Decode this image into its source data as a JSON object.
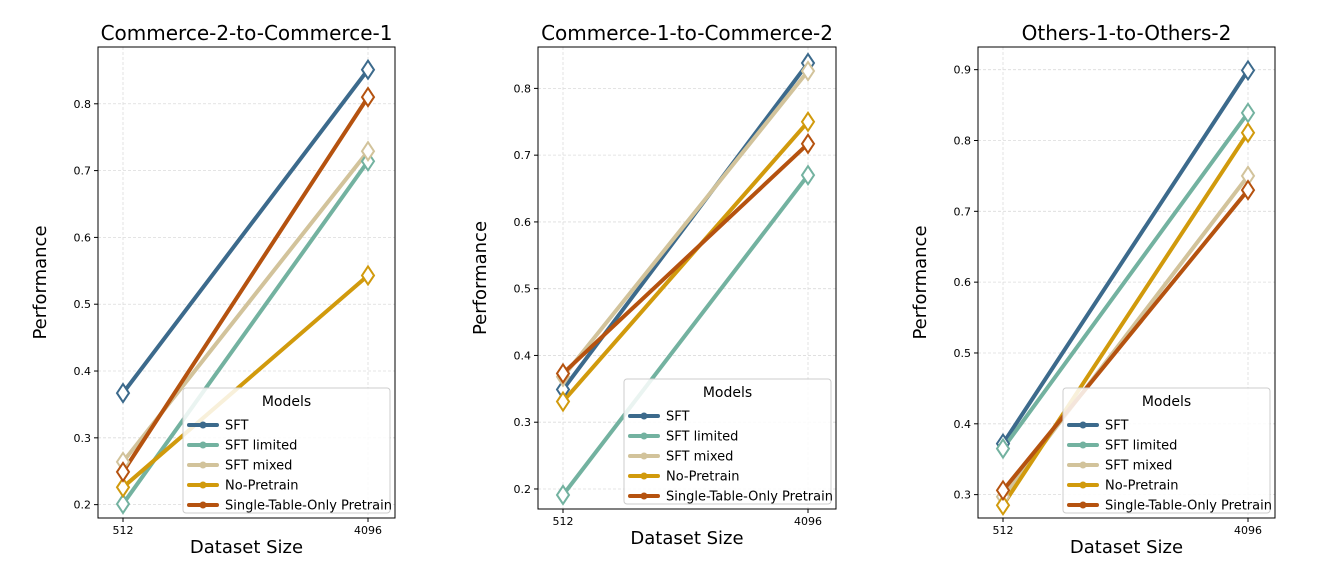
{
  "colors": {
    "SFT": "#3c6a8c",
    "SFT limited": "#73b2a0",
    "SFT mixed": "#d2c39b",
    "No-Pretrain": "#d19a0c",
    "Single-Table-Only Pretrain": "#b5520f"
  },
  "legend": {
    "title": "Models",
    "placement": "lower-right",
    "entries": [
      "SFT",
      "SFT limited",
      "SFT mixed",
      "No-Pretrain",
      "Single-Table-Only Pretrain"
    ]
  },
  "chart_data": [
    {
      "type": "line",
      "title": "Commerce-2-to-Commerce-1",
      "xlabel": "Dataset Size",
      "ylabel": "Performance",
      "categories": [
        "512",
        "4096"
      ],
      "ylim": [
        0.18,
        0.885
      ],
      "yticks": [
        0.2,
        0.3,
        0.4,
        0.5,
        0.6,
        0.7,
        0.8
      ],
      "grid": true,
      "marker": "diamond",
      "series": [
        {
          "name": "SFT",
          "values": [
            0.367,
            0.851
          ]
        },
        {
          "name": "SFT limited",
          "values": [
            0.201,
            0.714
          ]
        },
        {
          "name": "SFT mixed",
          "values": [
            0.264,
            0.729
          ]
        },
        {
          "name": "No-Pretrain",
          "values": [
            0.226,
            0.543
          ]
        },
        {
          "name": "Single-Table-Only Pretrain",
          "values": [
            0.249,
            0.81
          ]
        }
      ]
    },
    {
      "type": "line",
      "title": "Commerce-1-to-Commerce-2",
      "xlabel": "Dataset Size",
      "ylabel": "Performance",
      "categories": [
        "512",
        "4096"
      ],
      "ylim": [
        0.17,
        0.862
      ],
      "yticks": [
        0.2,
        0.3,
        0.4,
        0.5,
        0.6,
        0.7,
        0.8
      ],
      "grid": true,
      "marker": "diamond",
      "series": [
        {
          "name": "SFT",
          "values": [
            0.349,
            0.838
          ]
        },
        {
          "name": "SFT limited",
          "values": [
            0.191,
            0.67
          ]
        },
        {
          "name": "SFT mixed",
          "values": [
            0.368,
            0.826
          ]
        },
        {
          "name": "No-Pretrain",
          "values": [
            0.331,
            0.75
          ]
        },
        {
          "name": "Single-Table-Only Pretrain",
          "values": [
            0.373,
            0.717
          ]
        }
      ]
    },
    {
      "type": "line",
      "title": "Others-1-to-Others-2",
      "xlabel": "Dataset Size",
      "ylabel": "Performance",
      "categories": [
        "512",
        "4096"
      ],
      "ylim": [
        0.267,
        0.932
      ],
      "yticks": [
        0.3,
        0.4,
        0.5,
        0.6,
        0.7,
        0.8,
        0.9
      ],
      "grid": true,
      "marker": "diamond",
      "series": [
        {
          "name": "SFT",
          "values": [
            0.372,
            0.899
          ]
        },
        {
          "name": "SFT limited",
          "values": [
            0.365,
            0.839
          ]
        },
        {
          "name": "SFT mixed",
          "values": [
            0.297,
            0.75
          ]
        },
        {
          "name": "No-Pretrain",
          "values": [
            0.285,
            0.811
          ]
        },
        {
          "name": "Single-Table-Only Pretrain",
          "values": [
            0.306,
            0.73
          ]
        }
      ]
    }
  ]
}
